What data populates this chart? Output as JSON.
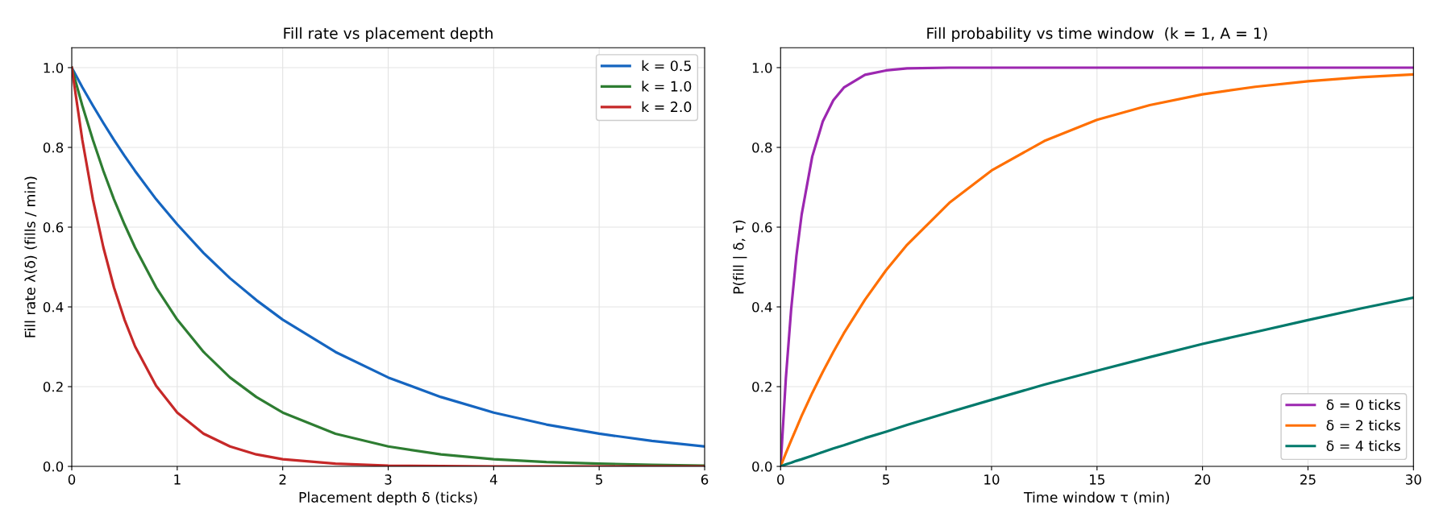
{
  "chart_data": [
    {
      "type": "line",
      "title": "Fill rate vs placement depth",
      "xlabel": "Placement depth δ (ticks)",
      "ylabel": "Fill rate λ(δ) (fills / min)",
      "xlim": [
        0,
        6
      ],
      "ylim": [
        0,
        1.05
      ],
      "xticks": [
        0,
        1,
        2,
        3,
        4,
        5,
        6
      ],
      "yticks": [
        {
          "value": 0,
          "label": "0.0"
        },
        {
          "value": 0.2,
          "label": "0.2"
        },
        {
          "value": 0.4,
          "label": "0.4"
        },
        {
          "value": 0.6,
          "label": "0.6"
        },
        {
          "value": 0.8,
          "label": "0.8"
        },
        {
          "value": 1,
          "label": "1.0"
        }
      ],
      "grid": true,
      "legend": "top right",
      "marker": "none",
      "line_style": "solid",
      "x": [
        0,
        0.1,
        0.2,
        0.3,
        0.4,
        0.5,
        0.6,
        0.8,
        1,
        1.25,
        1.5,
        1.75,
        2,
        2.5,
        3,
        3.5,
        4,
        4.5,
        5,
        5.5,
        6
      ],
      "series": [
        {
          "name": "k = 0.5",
          "color": "#1565c0",
          "values": [
            1,
            0.951,
            0.905,
            0.861,
            0.819,
            0.779,
            0.741,
            0.67,
            0.607,
            0.535,
            0.472,
            0.417,
            0.368,
            0.287,
            0.223,
            0.174,
            0.135,
            0.105,
            0.082,
            0.064,
            0.05
          ]
        },
        {
          "name": "k = 1.0",
          "color": "#2e7d32",
          "values": [
            1,
            0.905,
            0.819,
            0.741,
            0.67,
            0.607,
            0.549,
            0.449,
            0.368,
            0.287,
            0.223,
            0.174,
            0.135,
            0.082,
            0.05,
            0.03,
            0.018,
            0.011,
            0.007,
            0.004,
            0.002
          ]
        },
        {
          "name": "k = 2.0",
          "color": "#c62828",
          "values": [
            1,
            0.819,
            0.67,
            0.549,
            0.449,
            0.368,
            0.301,
            0.202,
            0.135,
            0.082,
            0.05,
            0.03,
            0.018,
            0.007,
            0.002,
            0.001,
            0,
            0,
            0,
            0,
            0
          ]
        }
      ]
    },
    {
      "type": "line",
      "title": "Fill probability vs time window  (k = 1, A = 1)",
      "xlabel": "Time window τ (min)",
      "ylabel": "P(fill | δ, τ)",
      "xlim": [
        0,
        30
      ],
      "ylim": [
        0,
        1.05
      ],
      "xticks": [
        0,
        5,
        10,
        15,
        20,
        25,
        30
      ],
      "yticks": [
        {
          "value": 0,
          "label": "0.0"
        },
        {
          "value": 0.2,
          "label": "0.2"
        },
        {
          "value": 0.4,
          "label": "0.4"
        },
        {
          "value": 0.6,
          "label": "0.6"
        },
        {
          "value": 0.8,
          "label": "0.8"
        },
        {
          "value": 1,
          "label": "1.0"
        }
      ],
      "grid": true,
      "legend": "bottom right",
      "marker": "none",
      "line_style": "solid",
      "x": [
        0,
        0.25,
        0.5,
        0.75,
        1,
        1.5,
        2,
        2.5,
        3,
        4,
        5,
        6,
        8,
        10,
        12.5,
        15,
        17.5,
        20,
        22.5,
        25,
        27.5,
        30
      ],
      "series": [
        {
          "name": "δ = 0 ticks",
          "color": "#9c27b0",
          "values": [
            0,
            0.221,
            0.393,
            0.528,
            0.632,
            0.777,
            0.865,
            0.918,
            0.95,
            0.982,
            0.993,
            0.998,
            1,
            1,
            1,
            1,
            1,
            1,
            1,
            1,
            1,
            1
          ]
        },
        {
          "name": "δ = 2 ticks",
          "color": "#ff6f00",
          "values": [
            0,
            0.033,
            0.065,
            0.096,
            0.127,
            0.184,
            0.237,
            0.287,
            0.334,
            0.418,
            0.492,
            0.556,
            0.661,
            0.742,
            0.816,
            0.869,
            0.906,
            0.933,
            0.952,
            0.966,
            0.976,
            0.983
          ]
        },
        {
          "name": "δ = 4 ticks",
          "color": "#00796b",
          "values": [
            0,
            0.005,
            0.009,
            0.014,
            0.018,
            0.027,
            0.036,
            0.045,
            0.053,
            0.071,
            0.087,
            0.104,
            0.136,
            0.167,
            0.205,
            0.24,
            0.274,
            0.307,
            0.337,
            0.367,
            0.396,
            0.423
          ]
        }
      ]
    }
  ]
}
